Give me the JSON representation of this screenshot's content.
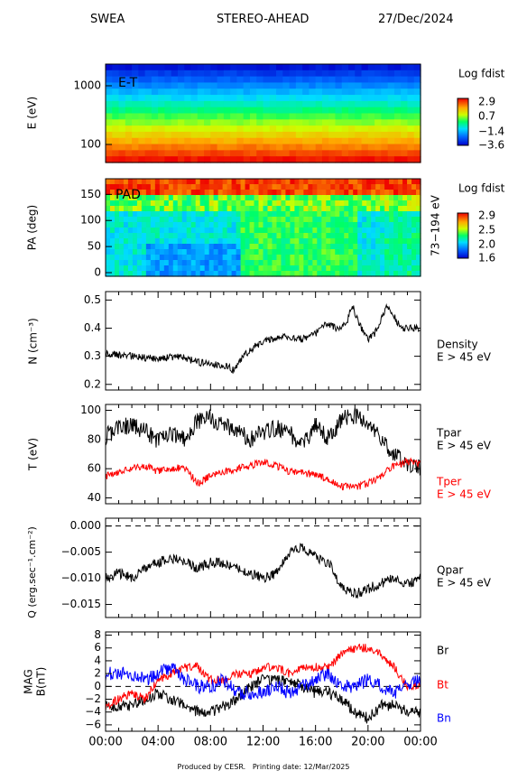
{
  "header": {
    "instrument": "SWEA",
    "spacecraft": "STEREO-AHEAD",
    "date": "27/Dec/2024"
  },
  "footer": {
    "credit": "Produced by CESR.",
    "print_label": "Printing date: 12/Mar/2025"
  },
  "chart_data": [
    {
      "type": "heatmap",
      "panel_label": "E-T",
      "ylabel": "E (eV)",
      "yscale": "log",
      "yticks": [
        "100",
        "1000"
      ],
      "colorbar_title": "Log fdist",
      "colorbar_ticks": [
        "2.9",
        "0.7",
        "−1.4",
        "−3.6"
      ],
      "colorbar_range": [
        -3.6,
        2.9
      ]
    },
    {
      "type": "heatmap",
      "panel_label": "PAD",
      "ylabel": "PA (deg)",
      "ylim": [
        0,
        180
      ],
      "yticks": [
        "0",
        "50",
        "100",
        "150"
      ],
      "energy_range": "73−194 eV",
      "colorbar_title": "Log fdist",
      "colorbar_ticks": [
        "2.9",
        "2.5",
        "2.0",
        "1.6"
      ],
      "colorbar_range": [
        1.6,
        2.9
      ]
    },
    {
      "type": "line",
      "ylabel": "N (cm⁻³)",
      "ylim": [
        0.18,
        0.53
      ],
      "yticks": [
        "0.2",
        "0.3",
        "0.4",
        "0.5"
      ],
      "series": [
        {
          "name": "Density",
          "note": "E > 45 eV",
          "color": "#000000",
          "x": [
            0,
            2,
            4,
            5.5,
            7,
            8,
            9,
            9.8,
            10.5,
            11.5,
            12.5,
            14,
            15,
            16,
            16.8,
            17.5,
            18.3,
            18.8,
            19.5,
            20,
            20.5,
            21.5,
            22.5,
            24
          ],
          "y": [
            0.31,
            0.3,
            0.29,
            0.3,
            0.28,
            0.27,
            0.27,
            0.25,
            0.3,
            0.34,
            0.36,
            0.37,
            0.36,
            0.38,
            0.42,
            0.4,
            0.41,
            0.48,
            0.4,
            0.36,
            0.38,
            0.48,
            0.4,
            0.4
          ]
        }
      ]
    },
    {
      "type": "line",
      "ylabel": "T (eV)",
      "ylim": [
        36,
        104
      ],
      "yticks": [
        "40",
        "60",
        "80",
        "100"
      ],
      "series": [
        {
          "name": "Tpar",
          "note": "E > 45 eV",
          "color": "#000000",
          "x": [
            0,
            1,
            2,
            3,
            4,
            5,
            6,
            7,
            8,
            9,
            10,
            11,
            12,
            13,
            14,
            15,
            16,
            17,
            18,
            19,
            20,
            21,
            22,
            23,
            24
          ],
          "y": [
            82,
            88,
            90,
            86,
            78,
            85,
            80,
            92,
            95,
            90,
            87,
            80,
            85,
            88,
            85,
            75,
            90,
            80,
            94,
            96,
            92,
            80,
            70,
            62,
            62
          ]
        },
        {
          "name": "Tper",
          "note": "E > 45 eV",
          "color": "#ff0000",
          "x": [
            0,
            1,
            2,
            3,
            4,
            5,
            6,
            7,
            8,
            9,
            10,
            11,
            12,
            13,
            14,
            15,
            16,
            17,
            18,
            19,
            20,
            21,
            22,
            23,
            24
          ],
          "y": [
            55,
            58,
            60,
            62,
            58,
            60,
            61,
            50,
            55,
            58,
            60,
            62,
            65,
            62,
            58,
            57,
            56,
            52,
            48,
            47,
            50,
            55,
            62,
            65,
            63
          ]
        }
      ]
    },
    {
      "type": "line",
      "ylabel": "Q (erg.sec⁻¹.cm⁻²)",
      "ylim": [
        -0.0175,
        0.0015
      ],
      "yticks": [
        "0.000",
        "−0.005",
        "−0.010",
        "−0.015"
      ],
      "series": [
        {
          "name": "Qpar",
          "note": "E > 45 eV",
          "color": "#000000",
          "x": [
            0,
            1,
            2,
            3,
            4,
            5,
            6,
            7,
            8,
            9,
            10,
            11,
            12,
            13,
            14,
            15,
            16,
            17,
            18,
            19,
            20,
            21,
            22,
            23,
            24
          ],
          "y": [
            -0.01,
            -0.009,
            -0.01,
            -0.008,
            -0.007,
            -0.006,
            -0.007,
            -0.008,
            -0.007,
            -0.007,
            -0.008,
            -0.009,
            -0.01,
            -0.009,
            -0.005,
            -0.004,
            -0.006,
            -0.007,
            -0.012,
            -0.013,
            -0.012,
            -0.011,
            -0.01,
            -0.011,
            -0.01
          ]
        }
      ]
    },
    {
      "type": "line",
      "ylabel": "MAG B(nT)",
      "ylim": [
        -7,
        8.5
      ],
      "yticks": [
        "−6",
        "−4",
        "−2",
        "0",
        "2",
        "4",
        "6",
        "8"
      ],
      "xlabel": "",
      "xticks": [
        "00:00",
        "04:00",
        "08:00",
        "12:00",
        "16:00",
        "20:00",
        "00:00"
      ],
      "series": [
        {
          "name": "Br",
          "color": "#000000",
          "x": [
            0,
            1,
            2,
            3,
            4,
            5,
            6,
            7,
            8,
            9,
            10,
            11,
            12,
            13,
            14,
            15,
            16,
            17,
            18,
            19,
            20,
            21,
            22,
            23,
            24
          ],
          "y": [
            -3,
            -3,
            -3,
            -2,
            -1,
            -2,
            -3,
            -4,
            -4,
            -3,
            -2,
            0,
            1,
            1,
            1,
            0,
            -1,
            -1,
            -2,
            -4,
            -5,
            -3,
            -3,
            -4,
            -4
          ]
        },
        {
          "name": "Bt",
          "color": "#ff0000",
          "x": [
            0,
            1,
            2,
            3,
            4,
            5,
            6,
            7,
            8,
            9,
            10,
            11,
            12,
            13,
            14,
            15,
            16,
            17,
            18,
            19,
            20,
            21,
            22,
            23,
            24
          ],
          "y": [
            -3,
            -2,
            -1,
            -2,
            1,
            2,
            3,
            3,
            1,
            1,
            2,
            2,
            3,
            3,
            2,
            3,
            3,
            3,
            5,
            6,
            6,
            5,
            3,
            0,
            0
          ]
        },
        {
          "name": "Bn",
          "color": "#0000ff",
          "x": [
            0,
            1,
            2,
            3,
            4,
            5,
            6,
            7,
            8,
            9,
            10,
            11,
            12,
            13,
            14,
            15,
            16,
            17,
            18,
            19,
            20,
            21,
            22,
            23,
            24
          ],
          "y": [
            2,
            2,
            2,
            1,
            2,
            3,
            1,
            0,
            0,
            1,
            -1,
            -1,
            -1,
            0,
            -1,
            0,
            1,
            2,
            0,
            0,
            1,
            0,
            -1,
            0,
            1
          ]
        }
      ]
    }
  ]
}
